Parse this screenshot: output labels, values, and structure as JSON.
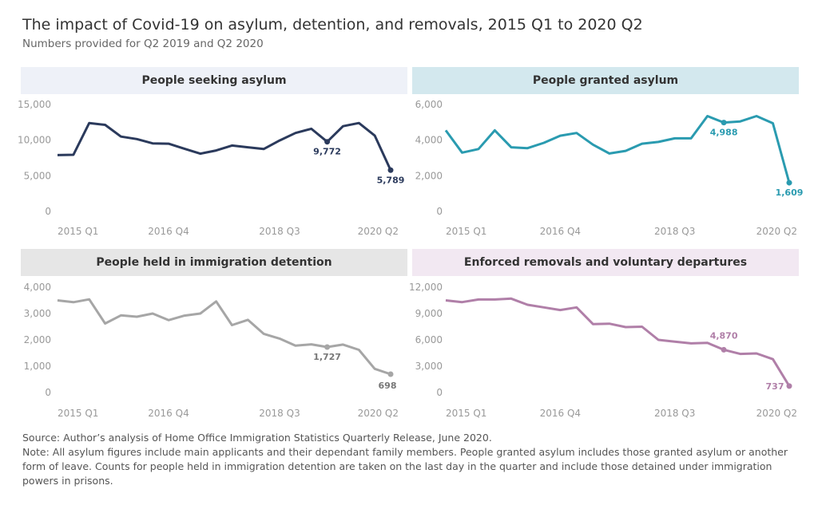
{
  "title": "The impact of Covid-19 on asylum, detention, and removals, 2015 Q1 to 2020 Q2",
  "subtitle": "Numbers provided for Q2 2019 and Q2 2020",
  "notes": {
    "source": "Source: Author’s analysis of Home Office Immigration Statistics Quarterly Release, June 2020.",
    "note": "Note: All asylum figures include main applicants and their dependant family members. People granted asylum includes those granted asylum or another form of leave. Counts for people held in immigration detention are taken on the last day in the quarter and include those detained under immigration powers in prisons."
  },
  "chart_data": [
    {
      "type": "line",
      "title": "People seeking asylum",
      "color": "#2b3a5c",
      "header_bg": "#eef1f8",
      "x_tick_labels": [
        "2015 Q1",
        "2016 Q4",
        "2018 Q3",
        "2020 Q2"
      ],
      "y_ticks": [
        "0",
        "5,000",
        "10,000",
        "15,000"
      ],
      "y_tick_values": [
        0,
        5000,
        10000,
        15000
      ],
      "ylim": [
        0,
        15000
      ],
      "grid": false,
      "values": [
        7900,
        7950,
        12400,
        12150,
        10500,
        10150,
        9550,
        9500,
        8800,
        8100,
        8550,
        9250,
        9000,
        8750,
        9950,
        11000,
        11600,
        9772,
        11950,
        12400,
        10650,
        5789
      ],
      "annotations": [
        {
          "label": "9,772",
          "index": 17
        },
        {
          "label": "5,789",
          "index": 21
        }
      ]
    },
    {
      "type": "line",
      "title": "People granted asylum",
      "color": "#2a9bb0",
      "header_bg": "#d3e8ee",
      "x_tick_labels": [
        "2015 Q1",
        "2016 Q4",
        "2018 Q3",
        "2020 Q2"
      ],
      "y_ticks": [
        "0",
        "2,000",
        "4,000",
        "6,000"
      ],
      "y_tick_values": [
        0,
        2000,
        4000,
        6000
      ],
      "ylim": [
        0,
        6000
      ],
      "grid": false,
      "values": [
        4550,
        3300,
        3500,
        4550,
        3600,
        3550,
        3850,
        4250,
        4400,
        3750,
        3250,
        3400,
        3800,
        3900,
        4100,
        4100,
        5350,
        4988,
        5050,
        5350,
        4950,
        1609
      ],
      "annotations": [
        {
          "label": "4,988",
          "index": 17
        },
        {
          "label": "1,609",
          "index": 21
        }
      ]
    },
    {
      "type": "line",
      "title": "People held in immigration detention",
      "color": "#a6a6a6",
      "header_bg": "#e6e6e6",
      "x_tick_labels": [
        "2015 Q1",
        "2016 Q4",
        "2018 Q3",
        "2020 Q2"
      ],
      "y_ticks": [
        "0",
        "1,000",
        "2,000",
        "3,000",
        "4,000"
      ],
      "y_tick_values": [
        0,
        1000,
        2000,
        3000,
        4000
      ],
      "ylim": [
        0,
        4000
      ],
      "grid": false,
      "values": [
        3500,
        3430,
        3540,
        2620,
        2930,
        2880,
        3000,
        2750,
        2920,
        3000,
        3460,
        2560,
        2760,
        2230,
        2050,
        1780,
        1830,
        1727,
        1820,
        1620,
        900,
        698
      ],
      "annotations": [
        {
          "label": "1,727",
          "index": 17
        },
        {
          "label": "698",
          "index": 21
        }
      ]
    },
    {
      "type": "line",
      "title": "Enforced removals and voluntary departures",
      "color": "#b07fa8",
      "header_bg": "#f2e8f2",
      "x_tick_labels": [
        "2015 Q1",
        "2016 Q4",
        "2018 Q3",
        "2020 Q2"
      ],
      "y_ticks": [
        "0",
        "3,000",
        "6,000",
        "9,000",
        "12,000"
      ],
      "y_tick_values": [
        0,
        3000,
        6000,
        9000,
        12000
      ],
      "ylim": [
        0,
        12000
      ],
      "grid": false,
      "values": [
        10500,
        10300,
        10600,
        10600,
        10700,
        10000,
        9700,
        9400,
        9700,
        7800,
        7850,
        7450,
        7500,
        6000,
        5800,
        5600,
        5650,
        4870,
        4400,
        4450,
        3800,
        737
      ],
      "annotations": [
        {
          "label": "4,870",
          "index": 17
        },
        {
          "label": "737",
          "index": 21
        }
      ]
    }
  ]
}
